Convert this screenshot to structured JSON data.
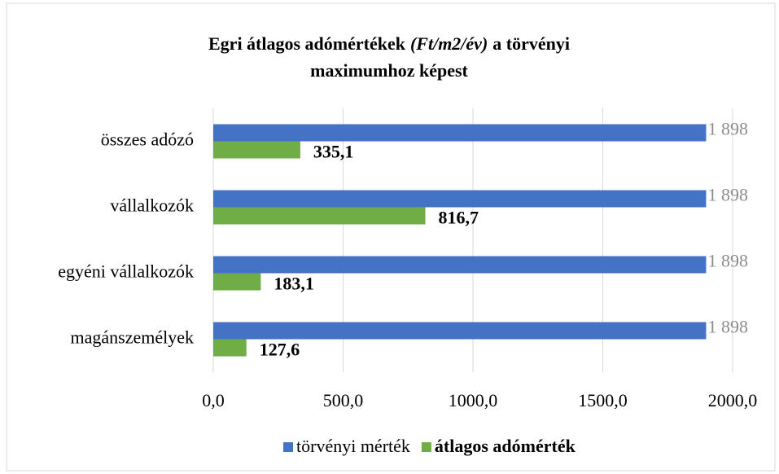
{
  "chart_data": {
    "type": "bar",
    "orientation": "horizontal",
    "title": [
      "Egri átlagos adómértékek",
      "(Ft/m2/év)",
      "a törvényi",
      "maximumhoz képest"
    ],
    "categories": [
      "összes adózó",
      "vállalkozók",
      "egyéni vállalkozók",
      "magánszemélyek"
    ],
    "series": [
      {
        "name": "törvényi mérték",
        "color": "#4472c4",
        "values": [
          1898,
          1898,
          1898,
          1898
        ],
        "value_labels": [
          "1 898",
          "1 898",
          "1 898",
          "1 898"
        ]
      },
      {
        "name": "átlagos adómérték",
        "color": "#70ad47",
        "values": [
          335.1,
          816.7,
          183.1,
          127.6
        ],
        "value_labels": [
          "335,1",
          "816,7",
          "183,1",
          "127,6"
        ]
      }
    ],
    "xlim": [
      0,
      2000
    ],
    "xticks": [
      {
        "value": 0,
        "label": "0,0"
      },
      {
        "value": 500,
        "label": "500,0"
      },
      {
        "value": 1000,
        "label": "1000,0"
      },
      {
        "value": 1500,
        "label": "1500,0"
      },
      {
        "value": 2000,
        "label": "2000,0"
      }
    ],
    "grid": true,
    "legend": "bottom"
  }
}
